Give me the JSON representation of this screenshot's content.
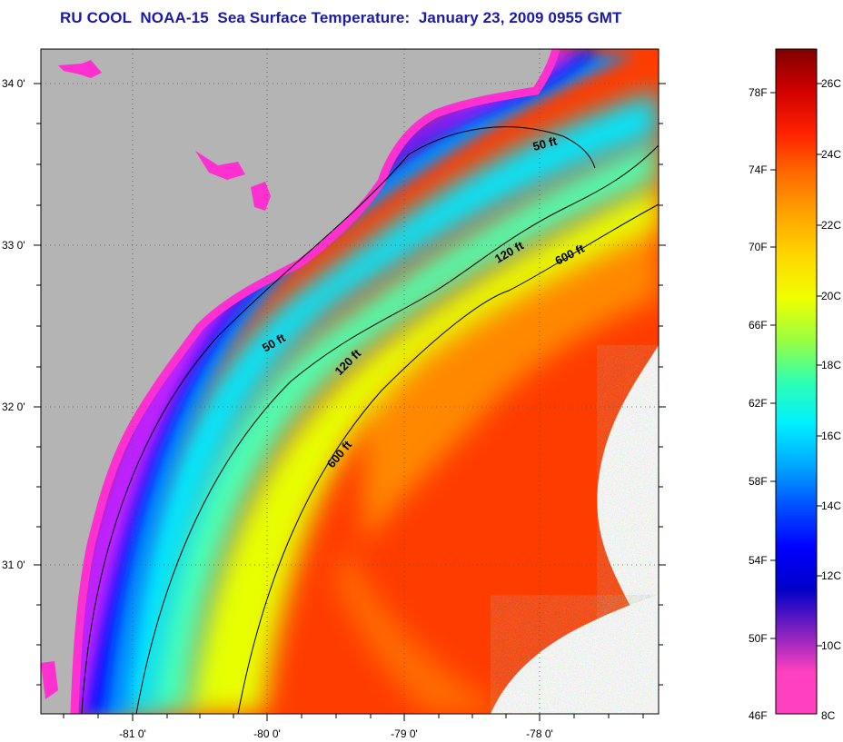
{
  "title": "RU COOL  NOAA-15  Sea Surface Temperature:  January 23, 2009 0955 GMT",
  "map": {
    "longitude_ticks": [
      "-81 0'",
      "-80 0'",
      "-79 0'",
      "-78 0'"
    ],
    "latitude_ticks": [
      "34 0'",
      "33 0'",
      "32 0'",
      "31 0'"
    ],
    "isobath_labels": [
      "50 ft",
      "120 ft",
      "600 ft",
      "50 ft",
      "120 ft",
      "600 ft"
    ],
    "colors": {
      "land": "#b4b4b4",
      "cloud": "#ffffff",
      "coast_line": "#000000"
    }
  },
  "colorbar": {
    "fahrenheit_labels": [
      "78F",
      "74F",
      "70F",
      "66F",
      "62F",
      "58F",
      "54F",
      "50F",
      "46F"
    ],
    "celsius_labels": [
      "26C",
      "24C",
      "22C",
      "20C",
      "18C",
      "16C",
      "14C",
      "12C",
      "10C",
      "8C"
    ],
    "gradient_colors": [
      "#800000",
      "#d00000",
      "#ff2000",
      "#ff6a00",
      "#ffa500",
      "#ffd800",
      "#f0ff00",
      "#9aff40",
      "#30ffb0",
      "#00f0ff",
      "#00aaff",
      "#0050ff",
      "#0000ff",
      "#0000c8",
      "#8020c0",
      "#ff40c0",
      "#ff40c0"
    ]
  }
}
